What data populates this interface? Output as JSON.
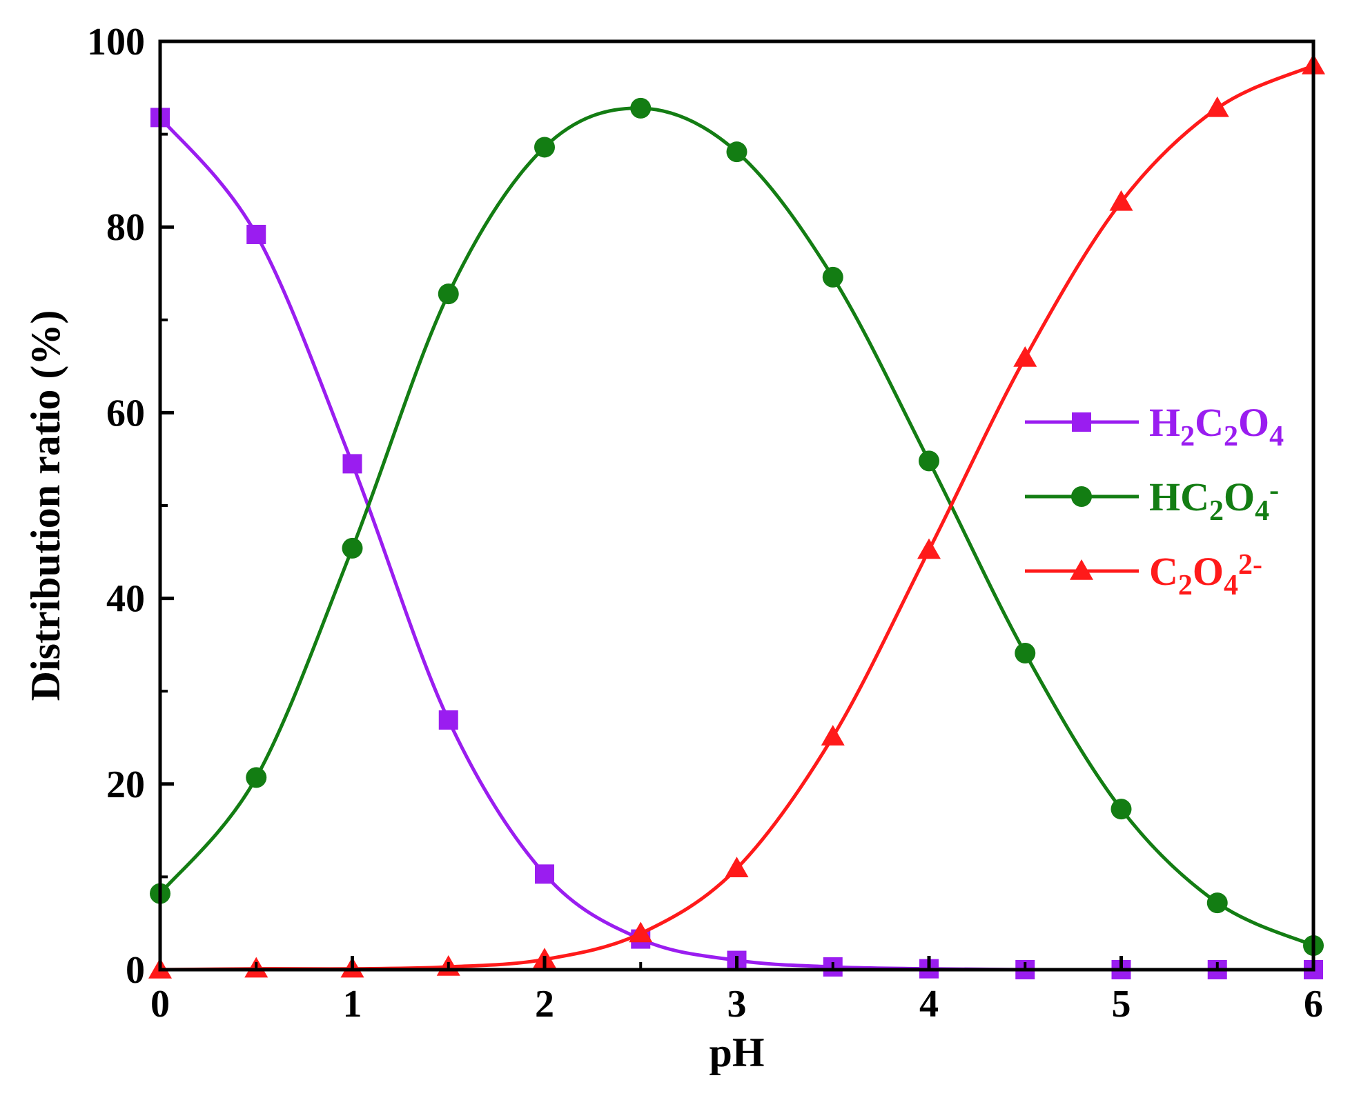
{
  "chart_data": {
    "type": "line",
    "xlabel": "pH",
    "ylabel": "Distribution ratio (%)",
    "xlim": [
      0,
      6
    ],
    "ylim": [
      0,
      100
    ],
    "x_ticks": [
      "0",
      "1",
      "2",
      "3",
      "4",
      "5",
      "6"
    ],
    "y_ticks": [
      "0",
      "20",
      "40",
      "60",
      "80",
      "100"
    ],
    "grid": false,
    "legend_position": "right-center",
    "x": [
      0,
      0.5,
      1,
      1.5,
      2,
      2.5,
      3,
      3.5,
      4,
      4.5,
      5,
      5.5,
      6
    ],
    "series": [
      {
        "key": "h2c2o4",
        "legend": {
          "parts": [
            {
              "t": "H",
              "s": ""
            },
            {
              "t": "2",
              "s": "sub"
            },
            {
              "t": "C",
              "s": ""
            },
            {
              "t": "2",
              "s": "sub"
            },
            {
              "t": "O",
              "s": ""
            },
            {
              "t": "4",
              "s": "sub"
            }
          ]
        },
        "color": "#9a1df0",
        "marker": "square",
        "values": [
          91.8,
          79.2,
          54.5,
          26.9,
          10.3,
          3.3,
          1.0,
          0.3,
          0.1,
          0.0,
          0.0,
          0.0,
          0.0
        ]
      },
      {
        "key": "hc2o4",
        "legend": {
          "parts": [
            {
              "t": "HC",
              "s": ""
            },
            {
              "t": "2",
              "s": "sub"
            },
            {
              "t": "O",
              "s": ""
            },
            {
              "t": "4",
              "s": "sub"
            },
            {
              "t": "-",
              "s": "sup"
            }
          ]
        },
        "color": "#137d13",
        "marker": "circle",
        "values": [
          8.2,
          20.7,
          45.4,
          72.8,
          88.6,
          92.8,
          88.1,
          74.6,
          54.8,
          34.1,
          17.3,
          7.2,
          2.6
        ]
      },
      {
        "key": "c2o4",
        "legend": {
          "parts": [
            {
              "t": "C",
              "s": ""
            },
            {
              "t": "2",
              "s": "sub"
            },
            {
              "t": "O",
              "s": ""
            },
            {
              "t": "4",
              "s": "sub"
            },
            {
              "t": "2-",
              "s": "sup"
            }
          ]
        },
        "color": "#ff1a1a",
        "marker": "triangle",
        "values": [
          0.0,
          0.1,
          0.1,
          0.3,
          1.1,
          3.9,
          10.9,
          25.1,
          45.2,
          65.9,
          82.7,
          92.8,
          97.4
        ]
      }
    ]
  }
}
